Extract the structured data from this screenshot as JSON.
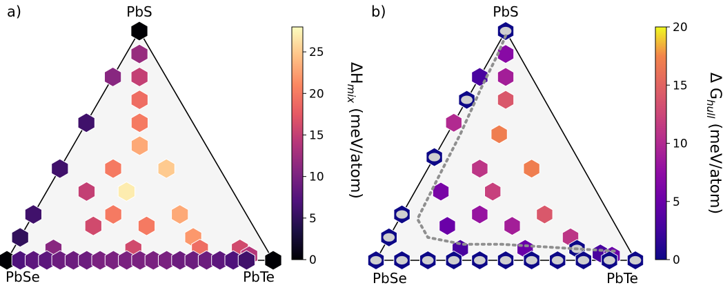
{
  "chart_data": [
    {
      "type": "ternary-hexbin",
      "panel_label": "a)",
      "corners": {
        "top": "PbS",
        "left": "PbSe",
        "right": "PbTe"
      },
      "colormap": "magma",
      "colorbar": {
        "label_main": "ΔH",
        "label_sub": "mix",
        "label_unit": "(meV/atom)",
        "range": [
          0,
          28
        ],
        "ticks": [
          0,
          5,
          10,
          15,
          20,
          25
        ]
      },
      "cells": [
        {
          "s": 1.0,
          "t": 0.0,
          "v": 0
        },
        {
          "s": 0.9,
          "t": 0.05,
          "v": 12
        },
        {
          "s": 0.8,
          "t": 0.0,
          "v": 11
        },
        {
          "s": 0.8,
          "t": 0.1,
          "v": 15
        },
        {
          "s": 0.7,
          "t": 0.15,
          "v": 19
        },
        {
          "s": 0.6,
          "t": 0.0,
          "v": 6
        },
        {
          "s": 0.6,
          "t": 0.2,
          "v": 20
        },
        {
          "s": 0.5,
          "t": 0.25,
          "v": 23
        },
        {
          "s": 0.4,
          "t": 0.0,
          "v": 6
        },
        {
          "s": 0.4,
          "t": 0.2,
          "v": 20
        },
        {
          "s": 0.4,
          "t": 0.4,
          "v": 25
        },
        {
          "s": 0.3,
          "t": 0.15,
          "v": 15
        },
        {
          "s": 0.3,
          "t": 0.3,
          "v": 27
        },
        {
          "s": 0.2,
          "t": 0.0,
          "v": 6
        },
        {
          "s": 0.2,
          "t": 0.3,
          "v": 20
        },
        {
          "s": 0.2,
          "t": 0.55,
          "v": 23
        },
        {
          "s": 0.15,
          "t": 0.25,
          "v": 16
        },
        {
          "s": 0.15,
          "t": 0.45,
          "v": 20
        },
        {
          "s": 0.1,
          "t": 0.0,
          "v": 5
        },
        {
          "s": 0.1,
          "t": 0.65,
          "v": 22
        },
        {
          "s": 0.05,
          "t": 0.15,
          "v": 11
        },
        {
          "s": 0.05,
          "t": 0.45,
          "v": 16
        },
        {
          "s": 0.05,
          "t": 0.7,
          "v": 19
        },
        {
          "s": 0.05,
          "t": 0.85,
          "v": 16
        },
        {
          "s": 0.02,
          "t": 0.9,
          "v": 14
        },
        {
          "s": 0.0,
          "t": 0.0,
          "v": 0
        },
        {
          "s": 0.0,
          "t": 0.05,
          "v": 7
        },
        {
          "s": 0.0,
          "t": 0.1,
          "v": 8
        },
        {
          "s": 0.0,
          "t": 0.15,
          "v": 8
        },
        {
          "s": 0.0,
          "t": 0.2,
          "v": 9
        },
        {
          "s": 0.0,
          "t": 0.25,
          "v": 9
        },
        {
          "s": 0.0,
          "t": 0.3,
          "v": 9
        },
        {
          "s": 0.0,
          "t": 0.35,
          "v": 10
        },
        {
          "s": 0.0,
          "t": 0.4,
          "v": 10
        },
        {
          "s": 0.0,
          "t": 0.45,
          "v": 10
        },
        {
          "s": 0.0,
          "t": 0.5,
          "v": 10
        },
        {
          "s": 0.0,
          "t": 0.55,
          "v": 10
        },
        {
          "s": 0.0,
          "t": 0.6,
          "v": 10
        },
        {
          "s": 0.0,
          "t": 0.65,
          "v": 9
        },
        {
          "s": 0.0,
          "t": 0.7,
          "v": 9
        },
        {
          "s": 0.0,
          "t": 0.75,
          "v": 9
        },
        {
          "s": 0.0,
          "t": 0.8,
          "v": 8
        },
        {
          "s": 0.0,
          "t": 0.85,
          "v": 7
        },
        {
          "s": 0.0,
          "t": 0.9,
          "v": 6
        },
        {
          "s": 0.0,
          "t": 1.0,
          "v": 0
        }
      ]
    },
    {
      "type": "ternary-hexbin",
      "panel_label": "b)",
      "corners": {
        "top": "PbS",
        "left": "PbSe",
        "right": "PbTe"
      },
      "colormap": "plasma",
      "colorbar": {
        "label_main": "Δ G",
        "label_sub": "hull",
        "label_unit": "(meV/atom)",
        "range": [
          0,
          20
        ],
        "ticks": [
          0,
          5,
          10,
          15,
          20
        ]
      },
      "cells": [
        {
          "s": 1.0,
          "t": 0.0,
          "v": 0,
          "stable": true
        },
        {
          "s": 0.9,
          "t": 0.05,
          "v": 7
        },
        {
          "s": 0.8,
          "t": 0.0,
          "v": 3
        },
        {
          "s": 0.8,
          "t": 0.1,
          "v": 9
        },
        {
          "s": 0.7,
          "t": 0.15,
          "v": 14
        },
        {
          "s": 0.7,
          "t": 0.0,
          "v": 0,
          "stable": true
        },
        {
          "s": 0.6,
          "t": 0.0,
          "v": 10
        },
        {
          "s": 0.55,
          "t": 0.2,
          "v": 17
        },
        {
          "s": 0.45,
          "t": 0.0,
          "v": 0,
          "stable": true
        },
        {
          "s": 0.4,
          "t": 0.2,
          "v": 11
        },
        {
          "s": 0.4,
          "t": 0.4,
          "v": 17
        },
        {
          "s": 0.3,
          "t": 0.1,
          "v": 6
        },
        {
          "s": 0.3,
          "t": 0.3,
          "v": 12
        },
        {
          "s": 0.2,
          "t": 0.0,
          "v": 0,
          "stable": true
        },
        {
          "s": 0.2,
          "t": 0.3,
          "v": 8
        },
        {
          "s": 0.2,
          "t": 0.55,
          "v": 14
        },
        {
          "s": 0.15,
          "t": 0.2,
          "v": 5
        },
        {
          "s": 0.15,
          "t": 0.45,
          "v": 9
        },
        {
          "s": 0.1,
          "t": 0.0,
          "v": 0,
          "stable": true
        },
        {
          "s": 0.1,
          "t": 0.7,
          "v": 11
        },
        {
          "s": 0.05,
          "t": 0.3,
          "v": 3
        },
        {
          "s": 0.05,
          "t": 0.55,
          "v": 5
        },
        {
          "s": 0.05,
          "t": 0.75,
          "v": 0,
          "stable": true
        },
        {
          "s": 0.03,
          "t": 0.85,
          "v": 3
        },
        {
          "s": 0.02,
          "t": 0.9,
          "v": 5
        },
        {
          "s": 0.0,
          "t": 0.0,
          "v": 0,
          "stable": true
        },
        {
          "s": 0.0,
          "t": 0.1,
          "v": 0,
          "stable": true
        },
        {
          "s": 0.0,
          "t": 0.2,
          "v": 0,
          "stable": true
        },
        {
          "s": 0.0,
          "t": 0.3,
          "v": 0,
          "stable": true
        },
        {
          "s": 0.0,
          "t": 0.4,
          "v": 0,
          "stable": true
        },
        {
          "s": 0.0,
          "t": 0.5,
          "v": 0,
          "stable": true
        },
        {
          "s": 0.0,
          "t": 0.6,
          "v": 0,
          "stable": true
        },
        {
          "s": 0.0,
          "t": 0.7,
          "v": 0,
          "stable": true
        },
        {
          "s": 0.0,
          "t": 0.8,
          "v": 0,
          "stable": true
        },
        {
          "s": 0.0,
          "t": 0.9,
          "v": 0,
          "stable": true
        },
        {
          "s": 0.0,
          "t": 1.0,
          "v": 0,
          "stable": true
        }
      ],
      "hull_boundary": [
        {
          "s": 0.98,
          "t": 0.01
        },
        {
          "s": 0.9,
          "t": 0.02
        },
        {
          "s": 0.75,
          "t": 0.03
        },
        {
          "s": 0.55,
          "t": 0.05
        },
        {
          "s": 0.35,
          "t": 0.06
        },
        {
          "s": 0.18,
          "t": 0.07
        },
        {
          "s": 0.1,
          "t": 0.15
        },
        {
          "s": 0.07,
          "t": 0.3
        },
        {
          "s": 0.07,
          "t": 0.45
        },
        {
          "s": 0.06,
          "t": 0.6
        },
        {
          "s": 0.05,
          "t": 0.75
        },
        {
          "s": 0.04,
          "t": 0.9
        }
      ]
    }
  ]
}
